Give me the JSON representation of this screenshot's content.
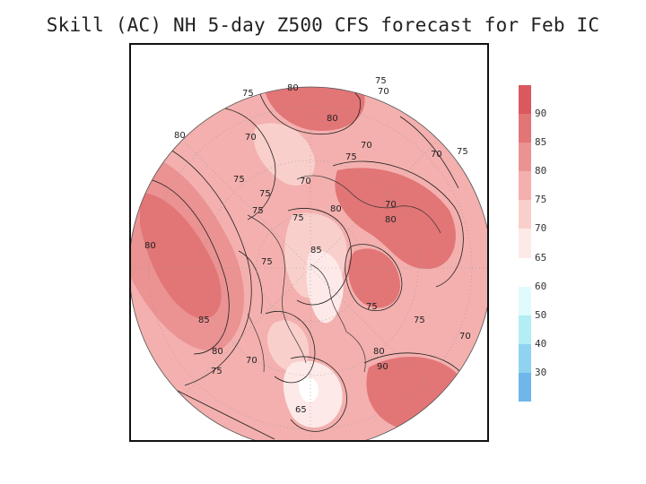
{
  "title": "Skill (AC) NH 5-day Z500 CFS forecast for Feb IC",
  "colorbar": {
    "segments": [
      {
        "color": "#d9595e",
        "label": "90"
      },
      {
        "color": "#e27576",
        "label": "85"
      },
      {
        "color": "#eb9293",
        "label": "80"
      },
      {
        "color": "#f3b0ae",
        "label": "75"
      },
      {
        "color": "#f9cfcc",
        "label": "70"
      },
      {
        "color": "#fde9e8",
        "label": "65"
      },
      {
        "color": "#ffffff",
        "label": "60"
      },
      {
        "color": "#e0fbfb",
        "label": "50"
      },
      {
        "color": "#b2eef3",
        "label": "40"
      },
      {
        "color": "#8fd3f0",
        "label": "30"
      },
      {
        "color": "#6fb6ea",
        "label": ""
      }
    ]
  },
  "contour_labels": [
    "75",
    "80",
    "75",
    "70",
    "80",
    "70",
    "80",
    "70",
    "75",
    "70",
    "70",
    "75",
    "75",
    "75",
    "70",
    "80",
    "75",
    "80",
    "80",
    "85",
    "85",
    "75",
    "75",
    "80",
    "75",
    "75",
    "70",
    "75",
    "80",
    "70",
    "65",
    "90"
  ],
  "colors": {
    "base": "#f3b0ae",
    "high": "#e27576",
    "veryhigh": "#d9595e",
    "low": "#f9cfcc",
    "verylow": "#fde9e8",
    "white": "#ffffff",
    "line": "#222222"
  }
}
